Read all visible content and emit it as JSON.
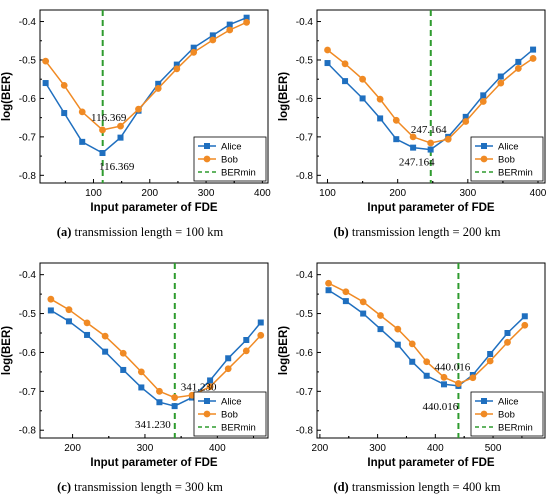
{
  "chart_data": [
    {
      "type": "line",
      "caption_letter": "(a)",
      "caption_text": "transmission length = 100 km",
      "xlabel": "Input parameter of FDE",
      "ylabel": "log(BER)",
      "xlim": [
        5,
        410
      ],
      "ylim": [
        -0.82,
        -0.37
      ],
      "xticks": [
        100,
        200,
        300,
        400
      ],
      "yticks": [
        -0.8,
        -0.7,
        -0.6,
        -0.5,
        -0.4
      ],
      "series": [
        {
          "name": "Alice",
          "color": "#1f6fbf",
          "marker": "square",
          "x": [
            15,
            48,
            80,
            116,
            148,
            180,
            215,
            248,
            278,
            312,
            342,
            372
          ],
          "y": [
            -0.56,
            -0.638,
            -0.713,
            -0.742,
            -0.702,
            -0.632,
            -0.562,
            -0.512,
            -0.468,
            -0.436,
            -0.408,
            -0.39
          ]
        },
        {
          "name": "Bob",
          "color": "#f08a24",
          "marker": "circle",
          "x": [
            15,
            48,
            80,
            116,
            148,
            180,
            215,
            248,
            278,
            312,
            342,
            372
          ],
          "y": [
            -0.503,
            -0.566,
            -0.635,
            -0.682,
            -0.672,
            -0.628,
            -0.574,
            -0.523,
            -0.48,
            -0.448,
            -0.422,
            -0.402
          ]
        }
      ],
      "vline": {
        "name": "BERmin",
        "x": 116.369,
        "color": "#2e9b2e"
      },
      "annotations": [
        {
          "text": "116.369",
          "x": 116.369,
          "y": -0.682,
          "pos": "above"
        },
        {
          "text": "116.369",
          "x": 116.369,
          "y": -0.742,
          "pos": "below"
        }
      ],
      "legend": "bottom-right"
    },
    {
      "type": "line",
      "caption_letter": "(b)",
      "caption_text": "transmission length = 200 km",
      "xlabel": "Input parameter of FDE",
      "ylabel": "log(BER)",
      "xlim": [
        85,
        410
      ],
      "ylim": [
        -0.82,
        -0.37
      ],
      "xticks": [
        100,
        200,
        300,
        400
      ],
      "yticks": [
        -0.8,
        -0.7,
        -0.6,
        -0.5,
        -0.4
      ],
      "series": [
        {
          "name": "Alice",
          "color": "#1f6fbf",
          "marker": "square",
          "x": [
            100,
            125,
            150,
            175,
            198,
            222,
            247,
            272,
            297,
            322,
            347,
            372,
            393
          ],
          "y": [
            -0.508,
            -0.555,
            -0.6,
            -0.652,
            -0.706,
            -0.728,
            -0.733,
            -0.7,
            -0.648,
            -0.592,
            -0.543,
            -0.505,
            -0.473
          ]
        },
        {
          "name": "Bob",
          "color": "#f08a24",
          "marker": "circle",
          "x": [
            100,
            125,
            150,
            175,
            198,
            222,
            247,
            272,
            297,
            322,
            347,
            372,
            393
          ],
          "y": [
            -0.474,
            -0.51,
            -0.55,
            -0.602,
            -0.657,
            -0.7,
            -0.716,
            -0.706,
            -0.66,
            -0.608,
            -0.56,
            -0.522,
            -0.496
          ]
        }
      ],
      "vline": {
        "name": "BERmin",
        "x": 247.164,
        "color": "#2e9b2e"
      },
      "annotations": [
        {
          "text": "247.164",
          "x": 247.164,
          "y": -0.716,
          "pos": "above"
        },
        {
          "text": "247.164",
          "x": 247.164,
          "y": -0.733,
          "pos": "below"
        }
      ],
      "legend": "bottom-right"
    },
    {
      "type": "line",
      "caption_letter": "(c)",
      "caption_text": "transmission length = 300 km",
      "xlabel": "Input parameter of FDE",
      "ylabel": "log(BER)",
      "xlim": [
        155,
        470
      ],
      "ylim": [
        -0.82,
        -0.37
      ],
      "xticks": [
        200,
        300,
        400
      ],
      "yticks": [
        -0.8,
        -0.7,
        -0.6,
        -0.5,
        -0.4
      ],
      "series": [
        {
          "name": "Alice",
          "color": "#1f6fbf",
          "marker": "square",
          "x": [
            170,
            195,
            220,
            245,
            270,
            295,
            320,
            341,
            365,
            390,
            415,
            440,
            460
          ],
          "y": [
            -0.492,
            -0.52,
            -0.555,
            -0.598,
            -0.645,
            -0.69,
            -0.728,
            -0.738,
            -0.716,
            -0.672,
            -0.615,
            -0.568,
            -0.523
          ]
        },
        {
          "name": "Bob",
          "color": "#f08a24",
          "marker": "circle",
          "x": [
            170,
            195,
            220,
            245,
            270,
            295,
            320,
            341,
            365,
            390,
            415,
            440,
            460
          ],
          "y": [
            -0.463,
            -0.49,
            -0.524,
            -0.558,
            -0.602,
            -0.65,
            -0.7,
            -0.716,
            -0.71,
            -0.688,
            -0.642,
            -0.596,
            -0.556
          ]
        }
      ],
      "vline": {
        "name": "BERmin",
        "x": 341.23,
        "color": "#2e9b2e"
      },
      "annotations": [
        {
          "text": "341.230",
          "x": 341.23,
          "y": -0.716,
          "pos": "above-right"
        },
        {
          "text": "341.230",
          "x": 341.23,
          "y": -0.738,
          "pos": "below-left"
        }
      ],
      "legend": "bottom-right"
    },
    {
      "type": "line",
      "caption_letter": "(d)",
      "caption_text": "transmission length = 400 km",
      "xlabel": "Input parameter of FDE",
      "ylabel": "log(BER)",
      "xlim": [
        195,
        590
      ],
      "ylim": [
        -0.82,
        -0.37
      ],
      "xticks": [
        200,
        300,
        400,
        500
      ],
      "yticks": [
        -0.8,
        -0.7,
        -0.6,
        -0.5,
        -0.4
      ],
      "series": [
        {
          "name": "Alice",
          "color": "#1f6fbf",
          "marker": "square",
          "x": [
            215,
            245,
            275,
            305,
            335,
            360,
            385,
            415,
            440,
            465,
            495,
            525,
            555
          ],
          "y": [
            -0.44,
            -0.468,
            -0.5,
            -0.54,
            -0.58,
            -0.624,
            -0.66,
            -0.682,
            -0.686,
            -0.658,
            -0.604,
            -0.55,
            -0.507
          ]
        },
        {
          "name": "Bob",
          "color": "#f08a24",
          "marker": "circle",
          "x": [
            215,
            245,
            275,
            305,
            335,
            360,
            385,
            415,
            440,
            465,
            495,
            525,
            555
          ],
          "y": [
            -0.422,
            -0.444,
            -0.47,
            -0.505,
            -0.54,
            -0.578,
            -0.624,
            -0.664,
            -0.68,
            -0.665,
            -0.622,
            -0.574,
            -0.53
          ]
        }
      ],
      "vline": {
        "name": "BERmin",
        "x": 440.016,
        "color": "#2e9b2e"
      },
      "annotations": [
        {
          "text": "440.016",
          "x": 440.016,
          "y": -0.68,
          "pos": "above-left"
        },
        {
          "text": "440.016",
          "x": 440.016,
          "y": -0.686,
          "pos": "below-left"
        }
      ],
      "legend": "bottom-right"
    }
  ]
}
